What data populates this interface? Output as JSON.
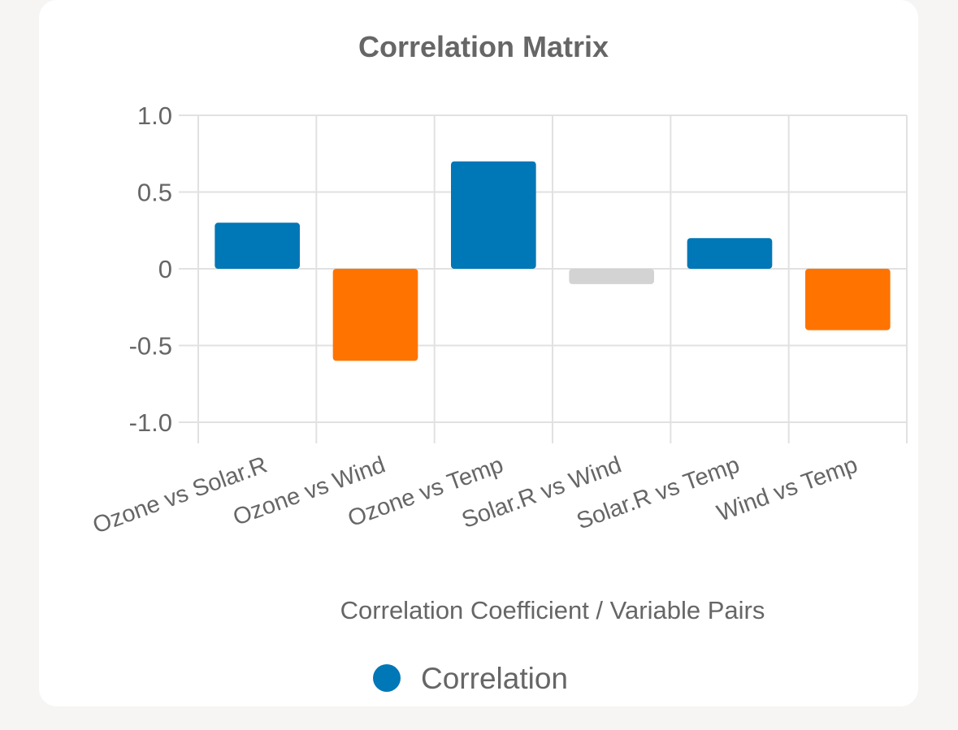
{
  "chart_data": {
    "type": "bar",
    "title": "Correlation Matrix",
    "xlabel": "Correlation Coefficient / Variable Pairs",
    "ylabel": "",
    "categories": [
      "Ozone vs Solar.R",
      "Ozone vs Wind",
      "Ozone vs Temp",
      "Solar.R vs Wind",
      "Solar.R vs Temp",
      "Wind vs Temp"
    ],
    "series": [
      {
        "name": "Correlation",
        "values": [
          0.3,
          -0.6,
          0.7,
          -0.1,
          0.2,
          -0.4
        ],
        "colors": [
          "#0077b6",
          "#ff7400",
          "#0077b6",
          "#d3d3d3",
          "#0077b6",
          "#ff7400"
        ]
      }
    ],
    "ylim": [
      -1.0,
      1.0
    ],
    "yticks": [
      1.0,
      0.5,
      0,
      -0.5,
      -1.0
    ],
    "ytick_labels": [
      "1.0",
      "0.5",
      "0",
      "-0.5",
      "-1.0"
    ],
    "grid": true,
    "legend_position": "bottom",
    "legend_color": "#0077b6"
  }
}
